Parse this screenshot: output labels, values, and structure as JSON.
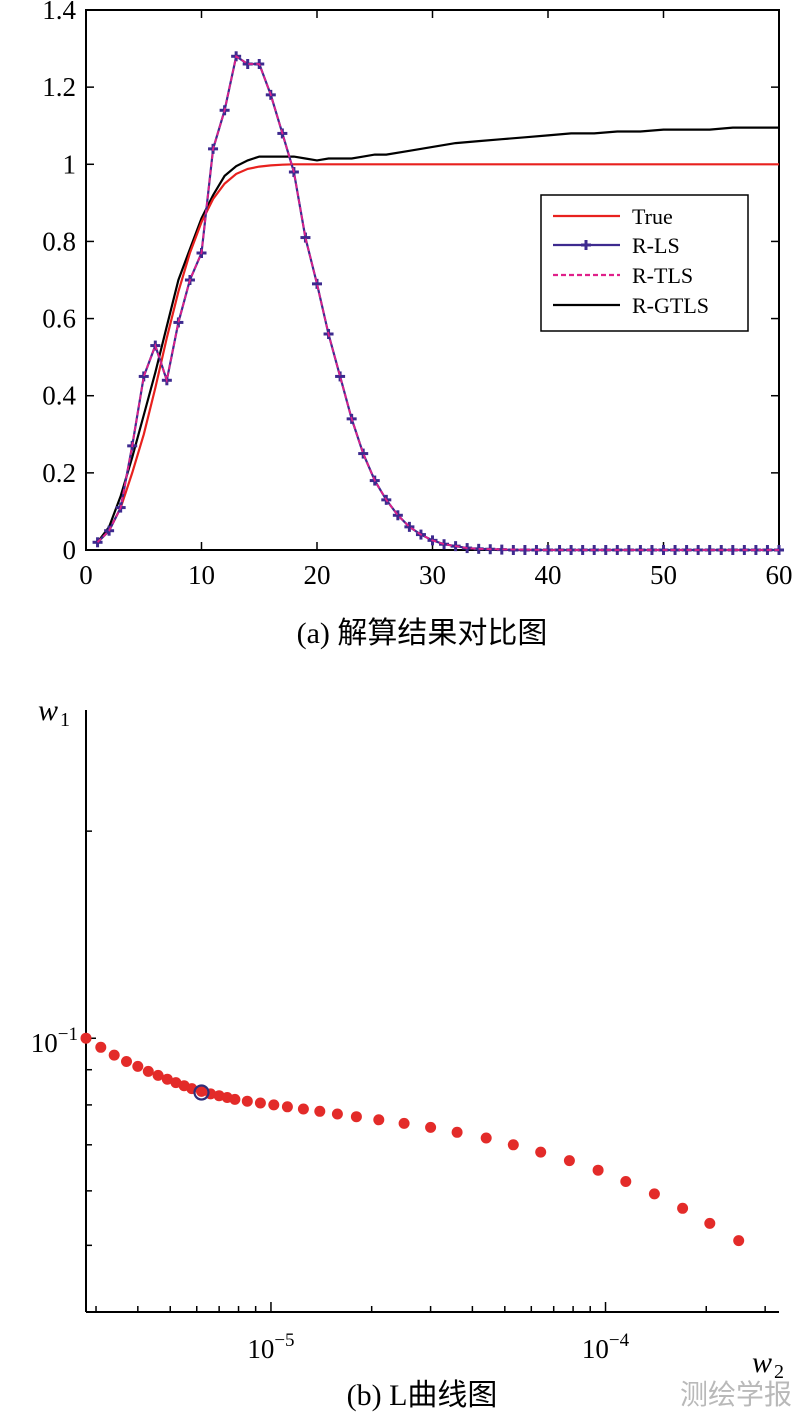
{
  "chart_data": [
    {
      "type": "line",
      "caption": "(a) 解算结果对比图",
      "xlim": [
        0,
        60
      ],
      "ylim": [
        0,
        1.4
      ],
      "xticks": [
        0,
        10,
        20,
        30,
        40,
        50,
        60
      ],
      "xtick_labels": [
        "0",
        "10",
        "20",
        "30",
        "40",
        "50",
        "60"
      ],
      "yticks": [
        0,
        0.2,
        0.4,
        0.6,
        0.8,
        1,
        1.2,
        1.4
      ],
      "ytick_labels": [
        "0",
        "0.2",
        "0.4",
        "0.6",
        "0.8",
        "1",
        "1.2",
        "1.4"
      ],
      "legend_position": "right",
      "series": [
        {
          "name": "True",
          "color": "#e8211e",
          "style": "solid",
          "x": [
            1,
            2,
            3,
            4,
            5,
            6,
            7,
            8,
            9,
            10,
            11,
            12,
            13,
            14,
            15,
            16,
            17,
            18,
            19,
            20,
            25,
            30,
            35,
            40,
            45,
            50,
            55,
            60
          ],
          "y": [
            0.02,
            0.05,
            0.11,
            0.2,
            0.3,
            0.42,
            0.55,
            0.67,
            0.77,
            0.85,
            0.91,
            0.95,
            0.975,
            0.988,
            0.994,
            0.997,
            0.999,
            1.0,
            1.0,
            1.0,
            1.0,
            1.0,
            1.0,
            1.0,
            1.0,
            1.0,
            1.0,
            1.0
          ]
        },
        {
          "name": "R-LS",
          "color": "#3d2a8f",
          "style": "solid-plus",
          "x": [
            1,
            2,
            3,
            4,
            5,
            6,
            7,
            8,
            9,
            10,
            11,
            12,
            13,
            14,
            15,
            16,
            17,
            18,
            19,
            20,
            21,
            22,
            23,
            24,
            25,
            26,
            27,
            28,
            29,
            30,
            31,
            32,
            33,
            34,
            35,
            36,
            37,
            38,
            39,
            40,
            41,
            42,
            43,
            44,
            45,
            46,
            47,
            48,
            49,
            50,
            51,
            52,
            53,
            54,
            55,
            56,
            57,
            58,
            59,
            60
          ],
          "y": [
            0.02,
            0.05,
            0.11,
            0.27,
            0.45,
            0.53,
            0.44,
            0.59,
            0.7,
            0.77,
            1.04,
            1.14,
            1.28,
            1.26,
            1.26,
            1.18,
            1.08,
            0.98,
            0.81,
            0.69,
            0.56,
            0.45,
            0.34,
            0.25,
            0.18,
            0.13,
            0.09,
            0.06,
            0.04,
            0.025,
            0.015,
            0.01,
            0.005,
            0.003,
            0.002,
            0.001,
            0.0,
            0.0,
            0.0,
            0.0,
            0.0,
            0.0,
            0.0,
            0.0,
            0.0,
            0.0,
            0.0,
            0.0,
            0.0,
            0.0,
            0.0,
            0.0,
            0.0,
            0.0,
            0.0,
            0.0,
            0.0,
            0.0,
            0.0,
            0.0
          ]
        },
        {
          "name": "R-TLS",
          "color": "#e0208a",
          "style": "dashed",
          "x": [
            1,
            2,
            3,
            4,
            5,
            6,
            7,
            8,
            9,
            10,
            11,
            12,
            13,
            14,
            15,
            16,
            17,
            18,
            19,
            20,
            21,
            22,
            23,
            24,
            25,
            26,
            27,
            28,
            29,
            30,
            31,
            32,
            33,
            34,
            35,
            40,
            45,
            50,
            55,
            60
          ],
          "y": [
            0.02,
            0.05,
            0.11,
            0.27,
            0.45,
            0.53,
            0.44,
            0.59,
            0.7,
            0.77,
            1.04,
            1.14,
            1.28,
            1.26,
            1.26,
            1.18,
            1.08,
            0.98,
            0.81,
            0.69,
            0.56,
            0.45,
            0.34,
            0.25,
            0.18,
            0.13,
            0.09,
            0.06,
            0.04,
            0.025,
            0.015,
            0.01,
            0.005,
            0.003,
            0.002,
            0.0,
            0.0,
            0.0,
            0.0,
            0.0
          ]
        },
        {
          "name": "R-GTLS",
          "color": "#000000",
          "style": "solid",
          "x": [
            1,
            2,
            3,
            4,
            5,
            6,
            7,
            8,
            9,
            10,
            11,
            12,
            13,
            14,
            15,
            16,
            17,
            18,
            19,
            20,
            21,
            22,
            23,
            24,
            25,
            26,
            28,
            30,
            32,
            34,
            36,
            38,
            40,
            42,
            44,
            46,
            48,
            50,
            52,
            54,
            56,
            58,
            60
          ],
          "y": [
            0.02,
            0.06,
            0.14,
            0.24,
            0.35,
            0.46,
            0.58,
            0.7,
            0.78,
            0.86,
            0.92,
            0.97,
            0.995,
            1.01,
            1.02,
            1.02,
            1.02,
            1.02,
            1.015,
            1.01,
            1.015,
            1.015,
            1.015,
            1.02,
            1.025,
            1.025,
            1.035,
            1.045,
            1.055,
            1.06,
            1.065,
            1.07,
            1.075,
            1.08,
            1.08,
            1.085,
            1.085,
            1.09,
            1.09,
            1.09,
            1.095,
            1.095,
            1.095
          ]
        }
      ]
    },
    {
      "type": "scatter",
      "caption": "(b) L曲线图",
      "xscale": "log",
      "yscale": "log",
      "xlabel": "w",
      "xlabel_sub": "2",
      "ylabel": "w",
      "ylabel_sub": "1",
      "xlim": [
        2.8e-06,
        0.00033
      ],
      "ylim": [
        0.04,
        0.3
      ],
      "xtick_labels": [
        "10^-5",
        "10^-4"
      ],
      "ytick_labels": [
        "10^-1"
      ],
      "marker_color": "#e32b29",
      "highlight_color": "#2e2e7a",
      "highlight_point": {
        "x": 6.2e-06,
        "y": 0.0834
      },
      "points": [
        [
          2.8e-06,
          0.1
        ],
        [
          3.1e-06,
          0.097
        ],
        [
          3.4e-06,
          0.0945
        ],
        [
          3.7e-06,
          0.0925
        ],
        [
          4e-06,
          0.091
        ],
        [
          4.3e-06,
          0.0895
        ],
        [
          4.6e-06,
          0.0883
        ],
        [
          4.9e-06,
          0.0872
        ],
        [
          5.2e-06,
          0.0862
        ],
        [
          5.5e-06,
          0.0853
        ],
        [
          5.8e-06,
          0.0845
        ],
        [
          6.2e-06,
          0.0837
        ],
        [
          6.6e-06,
          0.083
        ],
        [
          7e-06,
          0.0825
        ],
        [
          7.4e-06,
          0.082
        ],
        [
          7.8e-06,
          0.0815
        ],
        [
          8.5e-06,
          0.081
        ],
        [
          9.3e-06,
          0.0805
        ],
        [
          1.02e-05,
          0.08
        ],
        [
          1.12e-05,
          0.0795
        ],
        [
          1.25e-05,
          0.0789
        ],
        [
          1.4e-05,
          0.0783
        ],
        [
          1.58e-05,
          0.0776
        ],
        [
          1.8e-05,
          0.0769
        ],
        [
          2.1e-05,
          0.0761
        ],
        [
          2.5e-05,
          0.0752
        ],
        [
          3e-05,
          0.0742
        ],
        [
          3.6e-05,
          0.073
        ],
        [
          4.4e-05,
          0.0716
        ],
        [
          5.3e-05,
          0.07
        ],
        [
          6.4e-05,
          0.0683
        ],
        [
          7.8e-05,
          0.0664
        ],
        [
          9.5e-05,
          0.0643
        ],
        [
          0.000115,
          0.0619
        ],
        [
          0.00014,
          0.0594
        ],
        [
          0.00017,
          0.0566
        ],
        [
          0.000205,
          0.0538
        ],
        [
          0.00025,
          0.0508
        ]
      ]
    }
  ],
  "watermark": "测绘学报"
}
